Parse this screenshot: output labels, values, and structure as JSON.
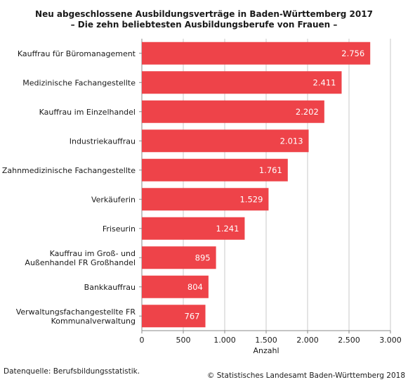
{
  "chart_data": {
    "type": "bar",
    "orientation": "horizontal",
    "title": "Neu abgeschlossene Ausbildungsverträge in Baden-Württemberg 2017",
    "subtitle": "– Die zehn beliebtesten Ausbildungsberufe von Frauen  –",
    "categories": [
      [
        "Kauffrau für Büromanagement"
      ],
      [
        "Medizinische Fachangestellte"
      ],
      [
        "Kauffrau im Einzelhandel"
      ],
      [
        "Industriekauffrau"
      ],
      [
        "Zahnmedizinische Fachangestellte"
      ],
      [
        "Verkäuferin"
      ],
      [
        "Friseurin"
      ],
      [
        "Kauffrau im Groß- und",
        "Außenhandel FR Großhandel"
      ],
      [
        "Bankkauffrau"
      ],
      [
        "Verwaltungsfachangestellte FR",
        "Kommunalverwaltung"
      ]
    ],
    "values": [
      2756,
      2411,
      2202,
      2013,
      1761,
      1529,
      1241,
      895,
      804,
      767
    ],
    "value_labels": [
      "2.756",
      "2.411",
      "2.202",
      "2.013",
      "1.761",
      "1.529",
      "1.241",
      "895",
      "804",
      "767"
    ],
    "xlabel": "Anzahl",
    "xlim": [
      0,
      3000
    ],
    "xticks": [
      0,
      500,
      1000,
      1500,
      2000,
      2500,
      3000
    ],
    "xtick_labels": [
      "0",
      "500",
      "1.000",
      "1.500",
      "2.000",
      "2.500",
      "3.000"
    ],
    "grid": "vertical",
    "bar_color": "#ee4349",
    "grid_color": "#c8c8c8",
    "label_color": "#ffffff"
  },
  "footer": {
    "source": "Datenquelle: Berufsbildungsstatistik.",
    "copyright": "© Statistisches Landesamt Baden-Württemberg 2018"
  }
}
